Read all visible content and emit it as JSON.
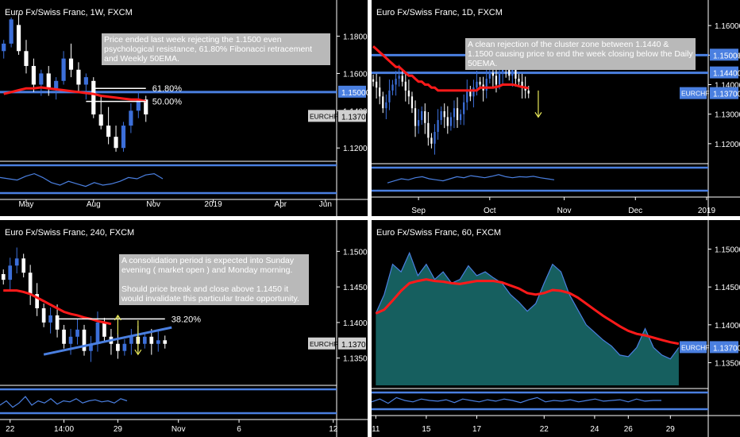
{
  "colors": {
    "bull": "#3c6fd9",
    "bear": "#ffffff",
    "ema": "#ff1a1a",
    "level": "#4a7fe0",
    "fib": "#ffffff",
    "axis_text": "#ffffff",
    "grid_sep": "#ffffff",
    "area_fill": "#1a7070",
    "arrow": "#e8e85a",
    "osc": "#4a7fe0"
  },
  "chart_data": [
    {
      "id": "weekly",
      "type": "candlestick",
      "title": "Euro Fx/Swiss Franc, 1W, FXCM",
      "annotation": "Price ended last week rejecting the 1.1500 even psychological resistance, 61.80% Fibonacci retracement and Weekly 50EMA.",
      "y_ticks": [
        1.12,
        1.14,
        1.16,
        1.18
      ],
      "y_tick_labels": [
        "1.12000",
        "1.14000",
        "1.16000",
        "1.18000"
      ],
      "ylim": [
        1.112,
        1.196
      ],
      "x_labels": [
        {
          "i": 3,
          "t": "May"
        },
        {
          "i": 12,
          "t": "Aug"
        },
        {
          "i": 20,
          "t": "Nov"
        },
        {
          "i": 28,
          "t": "2019"
        },
        {
          "i": 37,
          "t": "Apr"
        },
        {
          "i": 43,
          "t": "Jun"
        }
      ],
      "x_count": 45,
      "candles": [
        [
          1.172,
          1.178,
          1.168,
          1.176
        ],
        [
          1.176,
          1.19,
          1.174,
          1.189
        ],
        [
          1.186,
          1.192,
          1.17,
          1.172
        ],
        [
          1.172,
          1.178,
          1.16,
          1.164
        ],
        [
          1.164,
          1.168,
          1.15,
          1.154
        ],
        [
          1.154,
          1.162,
          1.148,
          1.16
        ],
        [
          1.16,
          1.164,
          1.148,
          1.152
        ],
        [
          1.152,
          1.158,
          1.146,
          1.156
        ],
        [
          1.156,
          1.172,
          1.154,
          1.168
        ],
        [
          1.168,
          1.176,
          1.158,
          1.162
        ],
        [
          1.162,
          1.166,
          1.15,
          1.154
        ],
        [
          1.154,
          1.16,
          1.146,
          1.158
        ],
        [
          1.156,
          1.158,
          1.136,
          1.138
        ],
        [
          1.138,
          1.148,
          1.13,
          1.132
        ],
        [
          1.132,
          1.142,
          1.122,
          1.126
        ],
        [
          1.126,
          1.132,
          1.118,
          1.12
        ],
        [
          1.12,
          1.134,
          1.118,
          1.132
        ],
        [
          1.132,
          1.144,
          1.128,
          1.14
        ],
        [
          1.14,
          1.15,
          1.136,
          1.146
        ],
        [
          1.146,
          1.148,
          1.134,
          1.138
        ]
      ],
      "ema": [
        1.149,
        1.15,
        1.151,
        1.152,
        1.152,
        1.1525,
        1.152,
        1.1515,
        1.151,
        1.1505,
        1.15,
        1.1495,
        1.149,
        1.148,
        1.1475,
        1.147,
        1.1465,
        1.146,
        1.146,
        1.145
      ],
      "levels": [
        {
          "price": 1.15,
          "label": "1.15000",
          "extend_full": true
        }
      ],
      "fib_levels": [
        {
          "price": 1.152,
          "label": "61.80%",
          "from": 12,
          "to": 19
        },
        {
          "price": 1.145,
          "label": "50.00%",
          "from": 11,
          "to": 19
        }
      ],
      "price_tag": {
        "price": 1.137,
        "label": "1.13700",
        "symbol": "EURCHF"
      },
      "osc": [
        0.55,
        0.5,
        0.45,
        0.6,
        0.7,
        0.55,
        0.35,
        0.25,
        0.4,
        0.3,
        0.2,
        0.35,
        0.25,
        0.3,
        0.4,
        0.55,
        0.5,
        0.65,
        0.7,
        0.5
      ]
    },
    {
      "id": "daily",
      "type": "candlestick",
      "title": "Euro Fx/Swiss Franc, 1D, FXCM",
      "annotation": "A clean rejection of the cluster zone between 1.1440 & 1.1500 causing price to end the week closing below the Daily 50EMA.",
      "y_ticks": [
        1.12,
        1.13,
        1.14,
        1.15,
        1.16
      ],
      "y_tick_labels": [
        "1.12000",
        "1.13000",
        "1.14000",
        "1.15000",
        "1.16000"
      ],
      "ylim": [
        1.1135,
        1.1665
      ],
      "x_labels": [
        {
          "i": 14,
          "t": "Sep"
        },
        {
          "i": 36,
          "t": "Oct"
        },
        {
          "i": 59,
          "t": "Nov"
        },
        {
          "i": 81,
          "t": "Dec"
        },
        {
          "i": 103,
          "t": "2019"
        }
      ],
      "x_count": 104,
      "candles_generated": true,
      "closes": [
        1.141,
        1.139,
        1.136,
        1.132,
        1.134,
        1.138,
        1.14,
        1.142,
        1.143,
        1.141,
        1.138,
        1.136,
        1.132,
        1.126,
        1.128,
        1.131,
        1.127,
        1.122,
        1.12,
        1.124,
        1.128,
        1.131,
        1.129,
        1.126,
        1.129,
        1.132,
        1.128,
        1.13,
        1.134,
        1.138,
        1.136,
        1.139,
        1.141,
        1.14,
        1.138,
        1.142,
        1.144,
        1.143,
        1.14,
        1.144,
        1.146,
        1.145,
        1.143,
        1.146,
        1.142,
        1.141,
        1.139,
        1.138,
        1.137
      ],
      "ema": [
        1.153,
        1.152,
        1.151,
        1.15,
        1.149,
        1.148,
        1.147,
        1.146,
        1.146,
        1.145,
        1.144,
        1.143,
        1.143,
        1.142,
        1.141,
        1.141,
        1.14,
        1.14,
        1.139,
        1.139,
        1.138,
        1.138,
        1.138,
        1.138,
        1.138,
        1.138,
        1.138,
        1.138,
        1.138,
        1.138,
        1.138,
        1.138,
        1.138,
        1.139,
        1.139,
        1.139,
        1.139,
        1.139,
        1.1392,
        1.1395,
        1.14,
        1.14,
        1.14,
        1.14,
        1.1398,
        1.1395,
        1.1392,
        1.139,
        1.1388
      ],
      "levels": [
        {
          "price": 1.15,
          "label": "1.15000",
          "extend_full": true
        },
        {
          "price": 1.144,
          "label": "1.14400",
          "extend_full": true
        }
      ],
      "price_tag": {
        "price": 1.137,
        "label": "1.13700",
        "symbol": "EURCHF"
      },
      "arrow": {
        "from_i": 51,
        "from_p": 1.138,
        "to_p": 1.129
      },
      "osc": [
        0.3,
        0.4,
        0.5,
        0.45,
        0.55,
        0.6,
        0.5,
        0.45,
        0.4,
        0.5,
        0.6,
        0.55,
        0.65,
        0.6,
        0.55,
        0.62,
        0.7,
        0.6,
        0.55,
        0.6,
        0.58,
        0.62,
        0.55,
        0.5,
        0.45
      ]
    },
    {
      "id": "h4",
      "type": "candlestick",
      "title": "Euro Fx/Swiss Franc, 240, FXCM",
      "annotation": [
        "A consolidation period is expected into Sunday evening ( market open ) and Monday morning.",
        "Should price break and close above 1.1450 it would invalidate this particular trade opportunity."
      ],
      "y_ticks": [
        1.135,
        1.14,
        1.145,
        1.15
      ],
      "y_tick_labels": [
        "1.13500",
        "1.14000",
        "1.14500",
        "1.15000"
      ],
      "ylim": [
        1.1315,
        1.1535
      ],
      "x_labels": [
        {
          "i": 1,
          "t": "22"
        },
        {
          "i": 9,
          "t": "14:00"
        },
        {
          "i": 17,
          "t": "29"
        },
        {
          "i": 26,
          "t": "Nov"
        },
        {
          "i": 35,
          "t": "6"
        },
        {
          "i": 49,
          "t": "12"
        }
      ],
      "x_count": 50,
      "candles_generated": true,
      "closes": [
        1.146,
        1.148,
        1.149,
        1.147,
        1.144,
        1.142,
        1.14,
        1.141,
        1.139,
        1.137,
        1.138,
        1.139,
        1.136,
        1.137,
        1.14,
        1.138,
        1.137,
        1.136,
        1.137,
        1.138,
        1.137,
        1.138,
        1.137,
        1.1375,
        1.137
      ],
      "ema": [
        1.1445,
        1.1445,
        1.1445,
        1.1443,
        1.144,
        1.1435,
        1.143,
        1.1425,
        1.142,
        1.1415,
        1.1412,
        1.141,
        1.1407,
        1.1405,
        1.1402,
        1.14,
        1.1398
      ],
      "ema_offset": 0,
      "fib_levels": [
        {
          "price": 1.1405,
          "label": "38.20%",
          "from": 8,
          "to": 24
        }
      ],
      "trendline": {
        "i1": 6,
        "p1": 1.1355,
        "i2": 25,
        "p2": 1.1393
      },
      "price_tag": {
        "price": 1.137,
        "label": "1.13700",
        "symbol": "EURCHF"
      },
      "arrows": [
        {
          "i": 17,
          "from_p": 1.1383,
          "to_p": 1.141
        },
        {
          "i": 20,
          "from_p": 1.1403,
          "to_p": 1.1355
        }
      ],
      "osc": [
        0.3,
        0.5,
        0.2,
        0.4,
        0.7,
        0.3,
        0.5,
        0.4,
        0.6,
        0.35,
        0.5,
        0.45,
        0.6,
        0.4,
        0.5,
        0.55,
        0.45,
        0.5,
        0.4,
        0.6,
        0.5
      ]
    },
    {
      "id": "h1",
      "type": "area",
      "title": "Euro Fx/Swiss Franc, 60, FXCM",
      "y_ticks": [
        1.135,
        1.14,
        1.145,
        1.15
      ],
      "y_tick_labels": [
        "1.13500",
        "1.14000",
        "1.14500",
        "1.15000"
      ],
      "ylim": [
        1.132,
        1.153
      ],
      "x_labels": [
        {
          "i": 0,
          "t": "11"
        },
        {
          "i": 6,
          "t": "15"
        },
        {
          "i": 12,
          "t": "17"
        },
        {
          "i": 20,
          "t": "22"
        },
        {
          "i": 26,
          "t": "24"
        },
        {
          "i": 30,
          "t": "26"
        },
        {
          "i": 35,
          "t": "29"
        }
      ],
      "x_count": 40,
      "values": [
        1.1415,
        1.144,
        1.148,
        1.147,
        1.1495,
        1.1465,
        1.148,
        1.146,
        1.147,
        1.1455,
        1.146,
        1.1478,
        1.1465,
        1.147,
        1.1462,
        1.1455,
        1.144,
        1.143,
        1.1418,
        1.1428,
        1.1455,
        1.148,
        1.147,
        1.144,
        1.142,
        1.14,
        1.139,
        1.138,
        1.1372,
        1.136,
        1.1358,
        1.137,
        1.1395,
        1.137,
        1.136,
        1.1355,
        1.137
      ],
      "ema": [
        1.1415,
        1.142,
        1.1432,
        1.1445,
        1.1455,
        1.1458,
        1.146,
        1.1458,
        1.1457,
        1.1455,
        1.1454,
        1.1456,
        1.1458,
        1.1458,
        1.1458,
        1.1456,
        1.1452,
        1.1448,
        1.1442,
        1.144,
        1.1442,
        1.1446,
        1.1445,
        1.1442,
        1.1436,
        1.1428,
        1.142,
        1.1412,
        1.1405,
        1.1398,
        1.1392,
        1.1388,
        1.1386,
        1.1383,
        1.138,
        1.1377,
        1.1375
      ],
      "price_tag": {
        "price": 1.137,
        "label": "1.13700",
        "symbol": "EURCHF"
      },
      "osc": [
        0.4,
        0.6,
        0.3,
        0.7,
        0.5,
        0.4,
        0.6,
        0.5,
        0.45,
        0.55,
        0.35,
        0.6,
        0.5,
        0.4,
        0.55,
        0.45,
        0.6,
        0.5,
        0.35,
        0.55,
        0.7,
        0.4,
        0.5,
        0.45,
        0.55,
        0.4,
        0.5,
        0.6,
        0.45,
        0.5,
        0.55,
        0.4,
        0.6,
        0.45,
        0.5,
        0.5
      ]
    }
  ]
}
